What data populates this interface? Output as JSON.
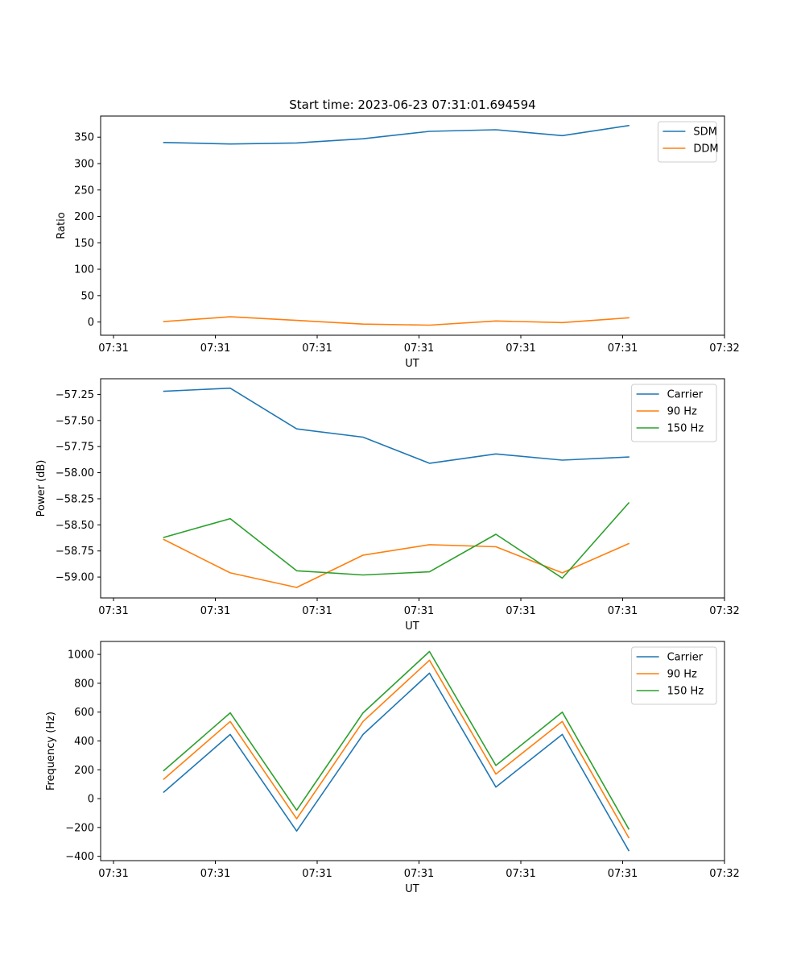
{
  "chart_data": [
    {
      "type": "line",
      "title": "Start time: 2023-06-23 07:31:01.694594",
      "xlabel": "UT",
      "ylabel": "Ratio",
      "x_tick_labels": [
        "07:31",
        "07:31",
        "07:31",
        "07:31",
        "07:31",
        "07:31",
        "07:32"
      ],
      "y_ticks": [
        0,
        50,
        100,
        150,
        200,
        250,
        300,
        350
      ],
      "ylim": [
        -25,
        390
      ],
      "legend": "top-right",
      "series": [
        {
          "name": "SDM",
          "color": "#1f77b4",
          "values": [
            340,
            337,
            339,
            347,
            361,
            364,
            353,
            372
          ]
        },
        {
          "name": "DDM",
          "color": "#ff7f0e",
          "values": [
            1,
            10,
            3,
            -4,
            -6,
            2,
            -1,
            8
          ]
        }
      ]
    },
    {
      "type": "line",
      "title": "",
      "xlabel": "UT",
      "ylabel": "Power (dB)",
      "x_tick_labels": [
        "07:31",
        "07:31",
        "07:31",
        "07:31",
        "07:31",
        "07:31",
        "07:32"
      ],
      "y_ticks": [
        -59.0,
        -58.75,
        -58.5,
        -58.25,
        -58.0,
        -57.75,
        -57.5,
        -57.25
      ],
      "ylim": [
        -59.2,
        -57.1
      ],
      "legend": "top-right",
      "series": [
        {
          "name": "Carrier",
          "color": "#1f77b4",
          "values": [
            -57.22,
            -57.19,
            -57.58,
            -57.66,
            -57.91,
            -57.82,
            -57.88,
            -57.85
          ]
        },
        {
          "name": "90 Hz",
          "color": "#ff7f0e",
          "values": [
            -58.64,
            -58.96,
            -59.1,
            -58.79,
            -58.69,
            -58.71,
            -58.96,
            -58.68
          ]
        },
        {
          "name": "150 Hz",
          "color": "#2ca02c",
          "values": [
            -58.62,
            -58.44,
            -58.94,
            -58.98,
            -58.95,
            -58.59,
            -59.01,
            -58.29
          ]
        }
      ]
    },
    {
      "type": "line",
      "title": "",
      "xlabel": "UT",
      "ylabel": "Frequency (Hz)",
      "x_tick_labels": [
        "07:31",
        "07:31",
        "07:31",
        "07:31",
        "07:31",
        "07:31",
        "07:32"
      ],
      "y_ticks": [
        -400,
        -200,
        0,
        200,
        400,
        600,
        800,
        1000
      ],
      "ylim": [
        -430,
        1090
      ],
      "legend": "top-right",
      "series": [
        {
          "name": "Carrier",
          "color": "#1f77b4",
          "values": [
            45,
            445,
            -225,
            445,
            870,
            80,
            445,
            -360
          ]
        },
        {
          "name": "90 Hz",
          "color": "#ff7f0e",
          "values": [
            135,
            535,
            -140,
            535,
            960,
            170,
            535,
            -270
          ]
        },
        {
          "name": "150 Hz",
          "color": "#2ca02c",
          "values": [
            195,
            595,
            -80,
            595,
            1020,
            230,
            600,
            -210
          ]
        }
      ]
    }
  ]
}
